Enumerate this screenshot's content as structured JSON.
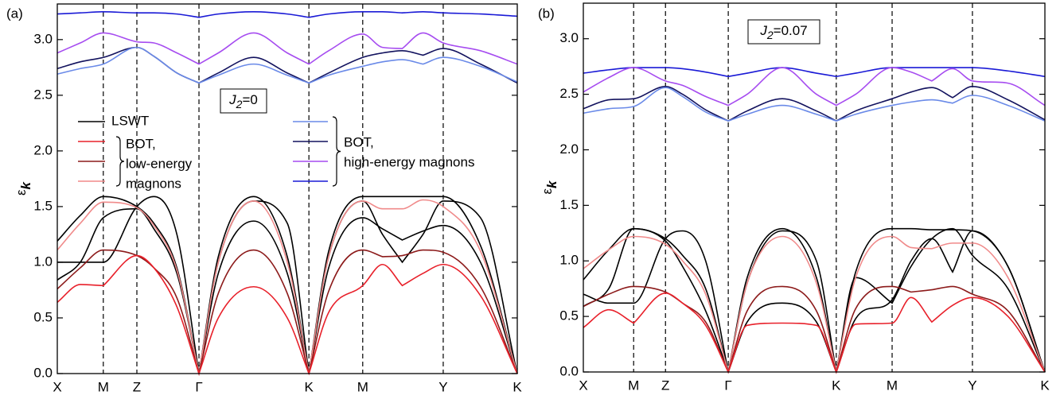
{
  "chart_data": [
    {
      "type": "line",
      "panel": "(a)",
      "ylabel": {
        "main": "ε",
        "sub": "k"
      },
      "annotation": {
        "main": "J",
        "sub": "2",
        "rest": "=0"
      },
      "xlim": [
        0,
        10
      ],
      "ylim": [
        0,
        3.32
      ],
      "xticks": [
        {
          "value": 0,
          "label": "X"
        },
        {
          "value": 1.0,
          "label": "M"
        },
        {
          "value": 1.73,
          "label": "Z"
        },
        {
          "value": 3.08,
          "label": "Γ"
        },
        {
          "value": 5.47,
          "label": "K"
        },
        {
          "value": 6.64,
          "label": "M"
        },
        {
          "value": 8.39,
          "label": "Y"
        },
        {
          "value": 10,
          "label": "K"
        }
      ],
      "yticks": [
        {
          "value": 0,
          "label": "0.0"
        },
        0.5,
        {
          "value": 1,
          "label": "1.0"
        },
        1.5,
        {
          "value": 2,
          "label": "2.0"
        },
        2.5,
        {
          "value": 3,
          "label": "3.0"
        }
      ],
      "x": [
        0,
        0.5,
        1.0,
        1.73,
        2.1,
        2.6,
        3.08,
        3.5,
        4.27,
        5.0,
        5.47,
        5.9,
        6.64,
        7.07,
        7.5,
        7.95,
        8.39,
        9.2,
        10
      ],
      "series": [
        {
          "color": "#1a1ad6",
          "values": [
            3.23,
            3.24,
            3.25,
            3.24,
            3.24,
            3.23,
            3.2,
            3.23,
            3.25,
            3.23,
            3.2,
            3.23,
            3.25,
            3.25,
            3.24,
            3.25,
            3.24,
            3.23,
            3.21
          ]
        },
        {
          "color": "#a64cf0",
          "values": [
            2.88,
            2.97,
            3.06,
            2.98,
            2.97,
            2.88,
            2.78,
            2.88,
            3.06,
            2.88,
            2.78,
            2.9,
            3.05,
            2.93,
            2.92,
            3.06,
            2.97,
            2.9,
            2.78
          ]
        },
        {
          "color": "#12125e",
          "values": [
            2.74,
            2.8,
            2.84,
            2.93,
            2.85,
            2.7,
            2.61,
            2.7,
            2.84,
            2.7,
            2.61,
            2.7,
            2.84,
            2.88,
            2.9,
            2.86,
            2.92,
            2.78,
            2.61
          ]
        },
        {
          "color": "#6a8ae8",
          "values": [
            2.69,
            2.74,
            2.78,
            2.93,
            2.85,
            2.7,
            2.61,
            2.68,
            2.78,
            2.68,
            2.61,
            2.68,
            2.76,
            2.8,
            2.82,
            2.78,
            2.84,
            2.76,
            2.62
          ]
        },
        {
          "color": "#000000",
          "values": [
            1.19,
            1.42,
            1.59,
            1.5,
            1.35,
            0.95,
            0,
            1.05,
            1.59,
            1.05,
            0,
            1.1,
            1.59,
            1.59,
            1.59,
            1.59,
            1.59,
            1.15,
            0
          ]
        },
        {
          "color": "#000000",
          "values": [
            1.0,
            1.0,
            1.0,
            1.5,
            1.59,
            1.25,
            0,
            1.0,
            1.55,
            1.35,
            0,
            1.05,
            1.55,
            1.25,
            1.0,
            1.25,
            1.55,
            1.4,
            0
          ]
        },
        {
          "color": "#000000",
          "values": [
            0.84,
            1.0,
            1.4,
            1.48,
            1.3,
            0.9,
            0,
            0.9,
            1.37,
            0.9,
            0,
            0.95,
            1.4,
            1.3,
            1.2,
            1.28,
            1.33,
            1.0,
            0
          ]
        },
        {
          "color": "#f08a8a",
          "values": [
            1.11,
            1.35,
            1.54,
            1.49,
            1.33,
            0.93,
            0,
            1.0,
            1.55,
            1.0,
            0,
            1.05,
            1.55,
            1.48,
            1.48,
            1.56,
            1.5,
            1.1,
            0
          ]
        },
        {
          "color": "#8c1a1a",
          "values": [
            0.76,
            0.95,
            1.11,
            1.06,
            0.95,
            0.68,
            0,
            0.72,
            1.11,
            0.72,
            0,
            0.74,
            1.11,
            1.05,
            1.06,
            1.11,
            1.09,
            0.78,
            0
          ]
        },
        {
          "color": "#e8202a",
          "values": [
            0.64,
            0.8,
            0.79,
            1.06,
            0.95,
            0.6,
            0,
            0.5,
            0.78,
            0.5,
            0,
            0.55,
            0.79,
            0.98,
            0.79,
            0.9,
            0.98,
            0.7,
            0
          ]
        }
      ],
      "legend": {
        "entries": [
          {
            "label": "LSWT",
            "color": "#000000"
          }
        ],
        "groups": [
          {
            "colors": [
              "#e8202a",
              "#8c1a1a",
              "#f08a8a"
            ],
            "labels": [
              "BOT,",
              "low-energy",
              "magnons"
            ]
          },
          {
            "colors": [
              "#6a8ae8",
              "#12125e",
              "#a64cf0",
              "#1a1ad6"
            ],
            "labels": [
              "BOT,",
              "high-energy magnons"
            ]
          }
        ]
      }
    },
    {
      "type": "line",
      "panel": "(b)",
      "ylabel": {
        "main": "ε",
        "sub": "k"
      },
      "annotation": {
        "main": "J",
        "sub": "2",
        "rest": "=0.07"
      },
      "xlim": [
        0,
        10
      ],
      "ylim": [
        0,
        3.32
      ],
      "xticks": [
        {
          "value": 0,
          "label": "X"
        },
        {
          "value": 1.09,
          "label": "M"
        },
        {
          "value": 1.78,
          "label": "Z"
        },
        {
          "value": 3.14,
          "label": "Γ"
        },
        {
          "value": 5.48,
          "label": "K"
        },
        {
          "value": 6.69,
          "label": "M"
        },
        {
          "value": 8.43,
          "label": "Y"
        },
        {
          "value": 10,
          "label": "K"
        }
      ],
      "yticks": [
        {
          "value": 0,
          "label": "0.0"
        },
        0.5,
        {
          "value": 1,
          "label": "1.0"
        },
        1.5,
        {
          "value": 2,
          "label": "2.0"
        },
        2.5,
        {
          "value": 3,
          "label": "3.0"
        }
      ],
      "x": [
        0,
        0.55,
        1.09,
        1.78,
        2.15,
        2.65,
        3.14,
        3.55,
        4.31,
        5.05,
        5.48,
        5.9,
        6.69,
        7.1,
        7.55,
        8.0,
        8.43,
        9.2,
        10
      ],
      "series": [
        {
          "color": "#1a1ad6",
          "values": [
            2.69,
            2.72,
            2.74,
            2.74,
            2.73,
            2.7,
            2.66,
            2.69,
            2.74,
            2.69,
            2.66,
            2.69,
            2.74,
            2.74,
            2.74,
            2.74,
            2.74,
            2.71,
            2.66
          ]
        },
        {
          "color": "#a64cf0",
          "values": [
            2.52,
            2.65,
            2.74,
            2.62,
            2.58,
            2.48,
            2.4,
            2.5,
            2.74,
            2.5,
            2.4,
            2.5,
            2.74,
            2.7,
            2.62,
            2.73,
            2.62,
            2.6,
            2.4
          ]
        },
        {
          "color": "#12125e",
          "values": [
            2.37,
            2.45,
            2.46,
            2.57,
            2.5,
            2.36,
            2.26,
            2.35,
            2.46,
            2.35,
            2.26,
            2.35,
            2.46,
            2.52,
            2.56,
            2.47,
            2.57,
            2.45,
            2.27
          ]
        },
        {
          "color": "#6a8ae8",
          "values": [
            2.33,
            2.37,
            2.39,
            2.56,
            2.48,
            2.34,
            2.26,
            2.32,
            2.4,
            2.32,
            2.26,
            2.32,
            2.4,
            2.43,
            2.45,
            2.42,
            2.49,
            2.4,
            2.26
          ]
        },
        {
          "color": "#000000",
          "values": [
            0.83,
            1.1,
            1.29,
            1.2,
            1.05,
            0.75,
            0,
            0.85,
            1.29,
            0.85,
            0,
            0.9,
            1.29,
            1.29,
            1.28,
            1.28,
            1.27,
            0.95,
            0
          ]
        },
        {
          "color": "#000000",
          "values": [
            0.7,
            0.62,
            0.62,
            1.2,
            1.27,
            1.0,
            0,
            0.8,
            1.27,
            1.0,
            0,
            0.85,
            0.62,
            0.95,
            1.2,
            1.29,
            1.05,
            0.75,
            0
          ]
        },
        {
          "color": "#000000",
          "values": [
            0.59,
            0.75,
            1.29,
            1.18,
            0.95,
            0.55,
            0,
            0.45,
            0.62,
            0.45,
            0,
            0.48,
            0.65,
            1.0,
            1.2,
            0.9,
            1.27,
            0.95,
            0
          ]
        },
        {
          "color": "#f08a8a",
          "values": [
            0.93,
            1.1,
            1.22,
            1.15,
            1.0,
            0.7,
            0,
            0.8,
            1.22,
            0.8,
            0,
            0.85,
            1.22,
            1.12,
            1.11,
            1.16,
            1.16,
            0.85,
            0
          ]
        },
        {
          "color": "#8c1a1a",
          "values": [
            0.59,
            0.7,
            0.77,
            0.72,
            0.62,
            0.45,
            0,
            0.55,
            0.77,
            0.55,
            0,
            0.57,
            0.77,
            0.72,
            0.74,
            0.77,
            0.7,
            0.55,
            0
          ]
        },
        {
          "color": "#e8202a",
          "values": [
            0.4,
            0.56,
            0.44,
            0.71,
            0.62,
            0.42,
            0,
            0.42,
            0.44,
            0.42,
            0,
            0.43,
            0.44,
            0.67,
            0.45,
            0.6,
            0.67,
            0.5,
            0
          ]
        }
      ]
    }
  ]
}
